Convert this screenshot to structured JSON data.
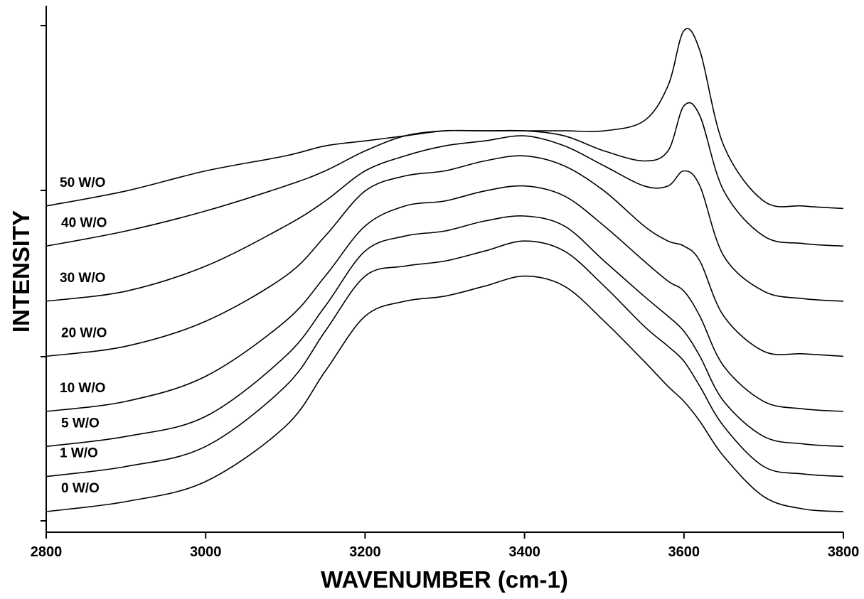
{
  "chart_data": {
    "type": "line",
    "title": "",
    "xlabel": "WAVENUMBER (cm-1)",
    "ylabel": "INTENSITY",
    "xlim": [
      2800,
      3800
    ],
    "ylim": [
      0,
      10
    ],
    "x_ticks": [
      2800,
      3000,
      3200,
      3400,
      3600,
      3800
    ],
    "y_ticks_labeled": false,
    "grid": false,
    "legend": "labels-at-left-of-each-curve",
    "x": [
      2800,
      2900,
      3000,
      3100,
      3150,
      3200,
      3250,
      3300,
      3350,
      3400,
      3450,
      3500,
      3550,
      3580,
      3600,
      3620,
      3650,
      3700,
      3750,
      3800
    ],
    "series": [
      {
        "name": "0 W/O",
        "values": [
          0.1,
          0.3,
          0.7,
          1.8,
          2.9,
          4.0,
          4.3,
          4.4,
          4.6,
          4.8,
          4.6,
          3.9,
          3.1,
          2.6,
          2.3,
          1.9,
          1.2,
          0.4,
          0.15,
          0.1
        ]
      },
      {
        "name": "1 W/O",
        "values": [
          0.8,
          1.0,
          1.4,
          2.6,
          3.7,
          4.8,
          5.0,
          5.1,
          5.3,
          5.5,
          5.3,
          4.6,
          3.8,
          3.4,
          3.1,
          2.6,
          1.8,
          1.0,
          0.85,
          0.8
        ]
      },
      {
        "name": "5 W/O",
        "values": [
          1.4,
          1.6,
          2.0,
          3.2,
          4.2,
          5.3,
          5.6,
          5.7,
          5.9,
          6.0,
          5.8,
          5.1,
          4.4,
          4.0,
          3.7,
          3.2,
          2.3,
          1.6,
          1.45,
          1.4
        ]
      },
      {
        "name": "10 W/O",
        "values": [
          2.1,
          2.3,
          2.8,
          3.9,
          4.8,
          5.8,
          6.2,
          6.3,
          6.5,
          6.6,
          6.4,
          5.8,
          5.1,
          4.7,
          4.5,
          4.0,
          3.0,
          2.3,
          2.15,
          2.1
        ]
      },
      {
        "name": "20 W/O",
        "values": [
          3.2,
          3.4,
          3.9,
          4.8,
          5.6,
          6.5,
          6.8,
          6.9,
          7.1,
          7.2,
          7.0,
          6.5,
          5.8,
          5.5,
          5.4,
          5.1,
          4.0,
          3.3,
          3.25,
          3.2
        ]
      },
      {
        "name": "30 W/O",
        "values": [
          4.3,
          4.5,
          5.0,
          5.8,
          6.3,
          6.9,
          7.2,
          7.4,
          7.5,
          7.6,
          7.4,
          7.0,
          6.6,
          6.6,
          6.9,
          6.6,
          5.2,
          4.5,
          4.35,
          4.3
        ]
      },
      {
        "name": "40 W/O",
        "values": [
          5.4,
          5.7,
          6.1,
          6.6,
          6.9,
          7.3,
          7.6,
          7.7,
          7.7,
          7.7,
          7.6,
          7.3,
          7.1,
          7.3,
          8.2,
          8.0,
          6.5,
          5.6,
          5.45,
          5.4
        ]
      },
      {
        "name": "50 W/O",
        "values": [
          6.2,
          6.5,
          6.9,
          7.2,
          7.4,
          7.5,
          7.6,
          7.7,
          7.7,
          7.7,
          7.7,
          7.7,
          7.9,
          8.6,
          9.7,
          9.3,
          7.4,
          6.3,
          6.2,
          6.15
        ]
      }
    ]
  },
  "axes": {
    "x_tick_labels": [
      "2800",
      "3000",
      "3200",
      "3400",
      "3600",
      "3800"
    ]
  }
}
